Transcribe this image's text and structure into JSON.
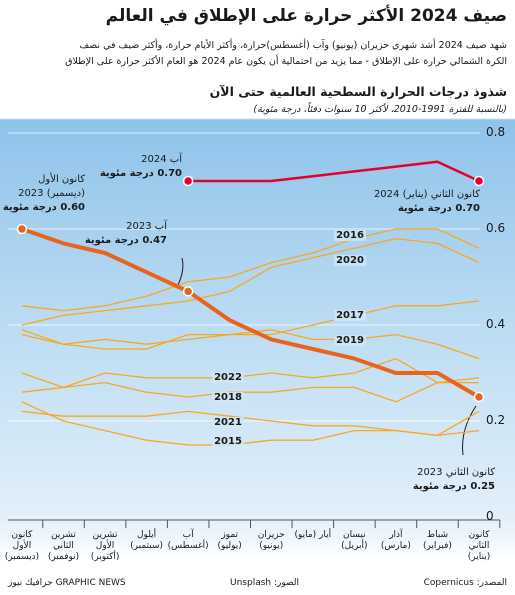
{
  "header": {
    "title": "صيف 2024 الأكثر حرارة على الإطلاق في العالم",
    "subtitle": [
      "شهد صيف 2024 أشد شهري حزيران (يونيو) وآب (أغسطس)حرارة، وأكثر الأيام حرارة، وأكثر صيف في نصف",
      "الكرة الشمالي حرارة على الإطلاق - مما يزيد من احتمالية أن يكون عام 2024 هو العام الأكثر حرارة على الإطلاق"
    ]
  },
  "chart_data": {
    "type": "line",
    "title": "شذوذ درجات الحرارة السطحية العالمية حتى الآن",
    "subtitle": "(بالنسبة للفترة 1991-2010، لأكثر 10 سنوات دفئاً، درجة مئوية)",
    "categories": [
      "كانون الثاني (يناير)",
      "شباط (فبراير)",
      "آذار (مارس)",
      "نيسان (أبريل)",
      "أيار (مايو)",
      "حزيران (يونيو)",
      "تموز (يوليو)",
      "آب (أغسطس)",
      "أيلول (سبتمبر)",
      "تشرين الأول (أكتوبر)",
      "تشرين الثاني (نوفمبر)",
      "كانون الأول (ديسمبر)"
    ],
    "ylim": [
      0,
      0.8
    ],
    "yticks": [
      0,
      0.2,
      0.4,
      0.6,
      0.8
    ],
    "grid": true,
    "series": [
      {
        "name": "2016",
        "color": "#f7a823",
        "values": [
          0.56,
          0.6,
          0.6,
          0.58,
          0.55,
          0.53,
          0.5,
          0.49,
          0.46,
          0.44,
          0.43,
          0.44
        ]
      },
      {
        "name": "2020",
        "color": "#f7a823",
        "values": [
          0.53,
          0.57,
          0.58,
          0.56,
          0.54,
          0.52,
          0.47,
          0.45,
          0.44,
          0.43,
          0.42,
          0.4
        ]
      },
      {
        "name": "2017",
        "color": "#f7a823",
        "values": [
          0.45,
          0.44,
          0.44,
          0.42,
          0.4,
          0.38,
          0.38,
          0.37,
          0.36,
          0.37,
          0.36,
          0.39
        ]
      },
      {
        "name": "2019",
        "color": "#f7a823",
        "values": [
          0.33,
          0.36,
          0.38,
          0.37,
          0.37,
          0.39,
          0.38,
          0.38,
          0.35,
          0.35,
          0.36,
          0.38
        ]
      },
      {
        "name": "2022",
        "color": "#f7a823",
        "values": [
          0.28,
          0.28,
          0.33,
          0.3,
          0.29,
          0.3,
          0.29,
          0.29,
          0.29,
          0.3,
          0.27,
          0.3
        ]
      },
      {
        "name": "2018",
        "color": "#f7a823",
        "values": [
          0.29,
          0.28,
          0.24,
          0.27,
          0.27,
          0.26,
          0.26,
          0.25,
          0.26,
          0.28,
          0.27,
          0.26
        ]
      },
      {
        "name": "2021",
        "color": "#f7a823",
        "values": [
          0.18,
          0.17,
          0.18,
          0.19,
          0.19,
          0.2,
          0.21,
          0.22,
          0.21,
          0.21,
          0.21,
          0.22
        ]
      },
      {
        "name": "2015",
        "color": "#f7a823",
        "values": [
          0.22,
          0.17,
          0.18,
          0.18,
          0.16,
          0.16,
          0.15,
          0.15,
          0.16,
          0.18,
          0.2,
          0.24
        ]
      },
      {
        "color": "#e8641e",
        "values": [
          0.25,
          0.3,
          0.3,
          0.33,
          0.35,
          0.37,
          0.41,
          0.47,
          0.51,
          0.55,
          0.57,
          0.6
        ]
      },
      {
        "color": "#e4002b",
        "values": [
          0.7,
          0.74,
          0.73,
          0.72,
          0.71,
          0.7,
          0.7,
          0.7,
          null,
          null,
          null,
          null
        ]
      }
    ],
    "annotations": [
      {
        "title": "آب 2024",
        "label": "0.70 درجة مئوية"
      },
      {
        "title": "كانون الثاني (يناير) 2024",
        "label": "0.70 درجة مئوية"
      },
      {
        "title": "كانون الأول (ديسمبر) 2023",
        "label": "0.60 درجة مئوية"
      },
      {
        "title": "آب 2023",
        "label": "0.47 درجة مئوية"
      },
      {
        "title": "كانون الثاني 2023",
        "label": "0.25 درجة مئوية"
      }
    ]
  },
  "footer": {
    "source": "المصدر: Copernicus",
    "photos": "الصور: Unsplash",
    "brand": "GRAPHIC NEWS جرافيك نيوز"
  }
}
